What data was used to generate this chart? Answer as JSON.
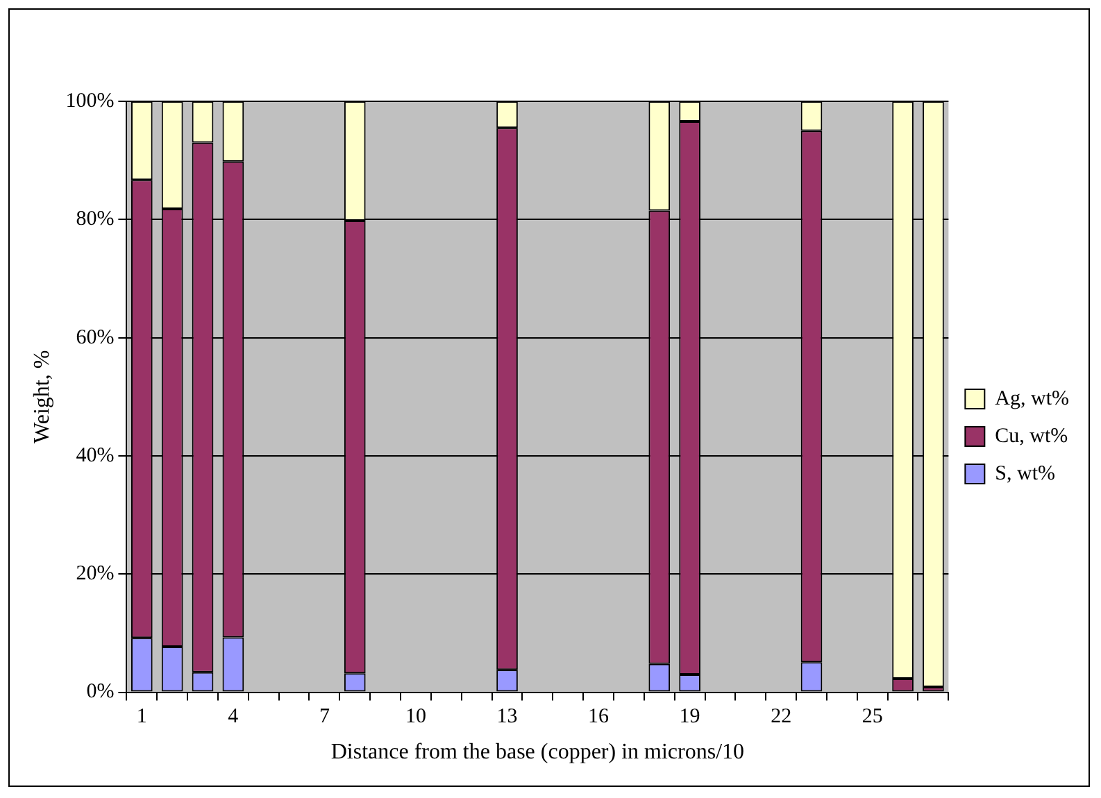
{
  "chart_data": {
    "type": "bar",
    "stacked": true,
    "xlabel": "Distance from the base (copper) in microns/10",
    "ylabel": "Weight, %",
    "categories": [
      "1",
      null,
      null,
      "4",
      null,
      null,
      "7",
      null,
      null,
      "10",
      null,
      null,
      "13",
      null,
      null,
      "16",
      null,
      null,
      "19",
      null,
      null,
      "22",
      null,
      null,
      "25",
      null,
      null
    ],
    "series": [
      {
        "name": "S, wt%",
        "color": "#9999ff",
        "values": [
          9.2,
          7.7,
          3.4,
          9.3,
          null,
          null,
          null,
          3.2,
          null,
          null,
          null,
          null,
          3.8,
          null,
          null,
          null,
          null,
          4.8,
          3,
          null,
          null,
          null,
          5.1,
          null,
          null,
          0,
          0
        ]
      },
      {
        "name": "Cu, wt%",
        "color": "#993366",
        "values": [
          77.5,
          74.1,
          89.6,
          80.5,
          null,
          null,
          null,
          76.6,
          null,
          null,
          null,
          null,
          91.7,
          null,
          null,
          null,
          null,
          76.7,
          93.6,
          null,
          null,
          null,
          89.9,
          null,
          null,
          2.3,
          0.9
        ]
      },
      {
        "name": "Ag, wt%",
        "color": "#ffffcc",
        "values": [
          13.3,
          18.2,
          7,
          10.2,
          null,
          null,
          null,
          20.2,
          null,
          null,
          null,
          null,
          4.5,
          null,
          null,
          null,
          null,
          18.5,
          3.4,
          null,
          null,
          null,
          5,
          null,
          null,
          97.7,
          99.1
        ]
      }
    ],
    "ylim": [
      0,
      100
    ],
    "yticks": [
      {
        "value": 0,
        "label": "0%"
      },
      {
        "value": 20,
        "label": "20%"
      },
      {
        "value": 40,
        "label": "40%"
      },
      {
        "value": 60,
        "label": "60%"
      },
      {
        "value": 80,
        "label": "80%"
      },
      {
        "value": 100,
        "label": "100%"
      }
    ],
    "grid": "y",
    "legend": "right"
  }
}
